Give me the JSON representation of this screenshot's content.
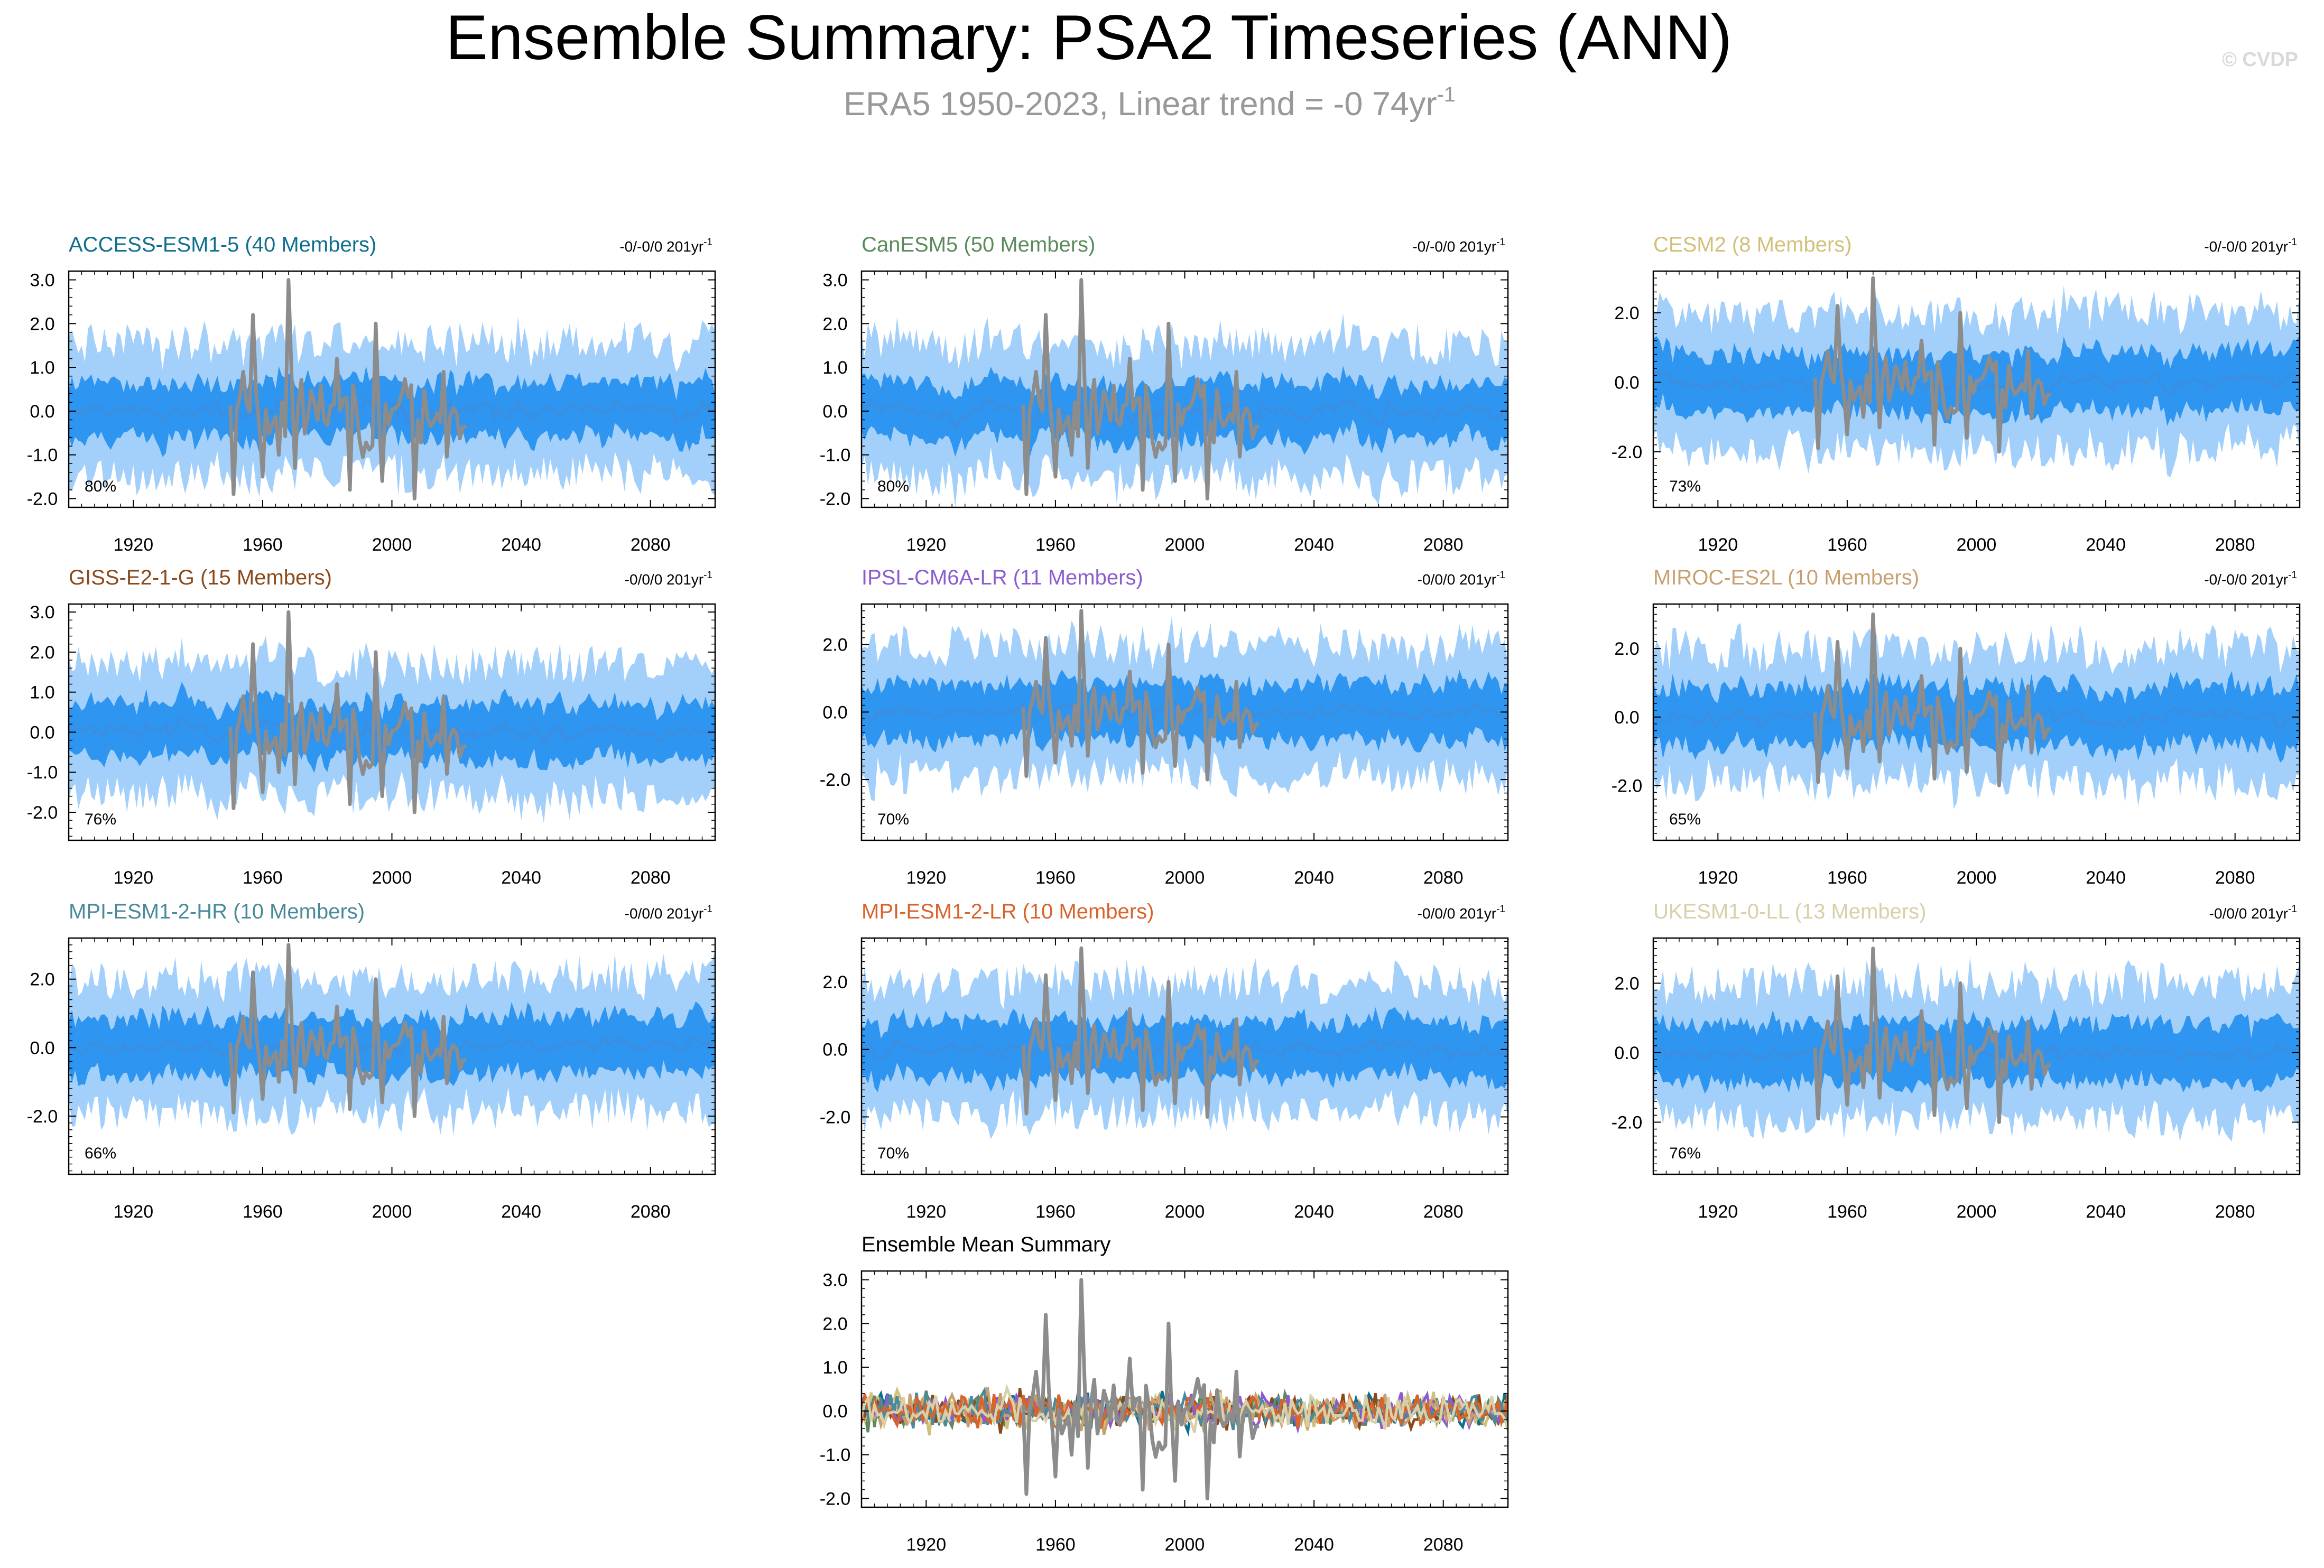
{
  "figure": {
    "title": "Ensemble Summary: PSA2 Timeseries (ANN)",
    "subtitle_prefix": "ERA5 1950-2023, Linear trend = -0 74yr",
    "subtitle_exp": "-1",
    "watermark": "© CVDP",
    "colors": {
      "title": "#000000",
      "subtitle": "#999999",
      "watermark": "#d9d9d9",
      "outer_band": "#a3d0fa",
      "inner_band": "#2e95f0",
      "ensemble_mean_line": "#3b8ee0",
      "observations": "#8c8c8c"
    }
  },
  "chart_data": [
    {
      "type": "line",
      "name": "ACCESS-ESM1-5 (40 Members)",
      "color": "#0f6f8f",
      "trend_text": "-0/-0/0 201yr",
      "trend_exp": "-1",
      "percent": "80%",
      "ylim": [
        -2.2,
        3.2
      ],
      "yticks": [
        -2,
        -1,
        0,
        1,
        2,
        3
      ],
      "ytick_labels": [
        "-2.0",
        "-1.0",
        "0.0",
        "1.0",
        "2.0",
        "3.0"
      ],
      "xlim": [
        1900,
        2100
      ],
      "xticks": [
        1920,
        1960,
        2000,
        2040,
        2080
      ],
      "band_outer": 1.5,
      "band_inner": 0.65,
      "seed": 11
    },
    {
      "type": "line",
      "name": "CanESM5 (50 Members)",
      "color": "#5b8a5b",
      "trend_text": "-0/-0/0 201yr",
      "trend_exp": "-1",
      "percent": "80%",
      "ylim": [
        -2.2,
        3.2
      ],
      "yticks": [
        -2,
        -1,
        0,
        1,
        2,
        3
      ],
      "ytick_labels": [
        "-2.0",
        "-1.0",
        "0.0",
        "1.0",
        "2.0",
        "3.0"
      ],
      "xlim": [
        1900,
        2100
      ],
      "xticks": [
        1920,
        1960,
        2000,
        2040,
        2080
      ],
      "band_outer": 1.5,
      "band_inner": 0.65,
      "seed": 23
    },
    {
      "type": "line",
      "name": "CESM2 (8 Members)",
      "color": "#d2c07a",
      "trend_text": "-0/-0/0 201yr",
      "trend_exp": "-1",
      "percent": "73%",
      "ylim": [
        -3.6,
        3.2
      ],
      "yticks": [
        -2,
        0,
        2
      ],
      "ytick_labels": [
        "-2.0",
        "0.0",
        "2.0"
      ],
      "xlim": [
        1900,
        2100
      ],
      "xticks": [
        1920,
        1960,
        2000,
        2040,
        2080
      ],
      "band_outer": 1.9,
      "band_inner": 0.85,
      "seed": 37
    },
    {
      "type": "line",
      "name": "GISS-E2-1-G (15 Members)",
      "color": "#8b4a1c",
      "trend_text": "-0/0/0 201yr",
      "trend_exp": "-1",
      "percent": "76%",
      "ylim": [
        -2.7,
        3.2
      ],
      "yticks": [
        -2,
        -1,
        0,
        1,
        2,
        3
      ],
      "ytick_labels": [
        "-2.0",
        "-1.0",
        "0.0",
        "1.0",
        "2.0",
        "3.0"
      ],
      "xlim": [
        1900,
        2100
      ],
      "xticks": [
        1920,
        1960,
        2000,
        2040,
        2080
      ],
      "band_outer": 1.6,
      "band_inner": 0.7,
      "seed": 41
    },
    {
      "type": "line",
      "name": "IPSL-CM6A-LR (11 Members)",
      "color": "#8a5cd0",
      "trend_text": "-0/0/0 201yr",
      "trend_exp": "-1",
      "percent": "70%",
      "ylim": [
        -3.8,
        3.2
      ],
      "yticks": [
        -2,
        0,
        2
      ],
      "ytick_labels": [
        "-2.0",
        "0.0",
        "2.0"
      ],
      "xlim": [
        1900,
        2100
      ],
      "xticks": [
        1920,
        1960,
        2000,
        2040,
        2080
      ],
      "band_outer": 1.9,
      "band_inner": 0.85,
      "seed": 53
    },
    {
      "type": "line",
      "name": "MIROC-ES2L (10 Members)",
      "color": "#c8a070",
      "trend_text": "-0/-0/0 201yr",
      "trend_exp": "-1",
      "percent": "65%",
      "ylim": [
        -3.6,
        3.3
      ],
      "yticks": [
        -2,
        0,
        2
      ],
      "ytick_labels": [
        "-2.0",
        "0.0",
        "2.0"
      ],
      "xlim": [
        1900,
        2100
      ],
      "xticks": [
        1920,
        1960,
        2000,
        2040,
        2080
      ],
      "band_outer": 1.9,
      "band_inner": 0.9,
      "seed": 67
    },
    {
      "type": "line",
      "name": "MPI-ESM1-2-HR (10 Members)",
      "color": "#4a8a9a",
      "trend_text": "-0/0/0 201yr",
      "trend_exp": "-1",
      "percent": "66%",
      "ylim": [
        -3.7,
        3.2
      ],
      "yticks": [
        -2,
        0,
        2
      ],
      "ytick_labels": [
        "-2.0",
        "0.0",
        "2.0"
      ],
      "xlim": [
        1900,
        2100
      ],
      "xticks": [
        1920,
        1960,
        2000,
        2040,
        2080
      ],
      "band_outer": 1.9,
      "band_inner": 0.85,
      "seed": 79
    },
    {
      "type": "line",
      "name": "MPI-ESM1-2-LR (10 Members)",
      "color": "#d9632a",
      "trend_text": "-0/0/0 201yr",
      "trend_exp": "-1",
      "percent": "70%",
      "ylim": [
        -3.7,
        3.3
      ],
      "yticks": [
        -2,
        0,
        2
      ],
      "ytick_labels": [
        "-2.0",
        "0.0",
        "2.0"
      ],
      "xlim": [
        1900,
        2100
      ],
      "xticks": [
        1920,
        1960,
        2000,
        2040,
        2080
      ],
      "band_outer": 1.9,
      "band_inner": 0.85,
      "seed": 83
    },
    {
      "type": "line",
      "name": "UKESM1-0-LL (13 Members)",
      "color": "#d8d0a8",
      "trend_text": "-0/0/0 201yr",
      "trend_exp": "-1",
      "percent": "76%",
      "ylim": [
        -3.5,
        3.3
      ],
      "yticks": [
        -2,
        0,
        2
      ],
      "ytick_labels": [
        "-2.0",
        "0.0",
        "2.0"
      ],
      "xlim": [
        1900,
        2100
      ],
      "xticks": [
        1920,
        1960,
        2000,
        2040,
        2080
      ],
      "band_outer": 1.9,
      "band_inner": 0.85,
      "seed": 97
    },
    {
      "type": "line",
      "name": "Ensemble Mean Summary",
      "color": "#000000",
      "ylim": [
        -2.2,
        3.2
      ],
      "yticks": [
        -2,
        -1,
        0,
        1,
        2,
        3
      ],
      "ytick_labels": [
        "-2.0",
        "-1.0",
        "0.0",
        "1.0",
        "2.0",
        "3.0"
      ],
      "xlim": [
        1900,
        2100
      ],
      "xticks": [
        1920,
        1960,
        2000,
        2040,
        2080
      ],
      "series_colors": [
        "#0f6f8f",
        "#5b8a5b",
        "#d2c07a",
        "#8b4a1c",
        "#8a5cd0",
        "#c8a070",
        "#4a8a9a",
        "#d9632a",
        "#d8d0a8"
      ],
      "mean_amp": 0.35,
      "seed": 5
    }
  ],
  "observations": {
    "name": "ERA5",
    "x_start": 1950,
    "x_end": 2023,
    "key_points": [
      {
        "x": 1951,
        "y": -1.9
      },
      {
        "x": 1954,
        "y": 0.9
      },
      {
        "x": 1957,
        "y": 2.2
      },
      {
        "x": 1960,
        "y": -1.5
      },
      {
        "x": 1965,
        "y": -1.0
      },
      {
        "x": 1968,
        "y": 3.0
      },
      {
        "x": 1970,
        "y": -1.3
      },
      {
        "x": 1983,
        "y": 1.2
      },
      {
        "x": 1987,
        "y": -1.8
      },
      {
        "x": 1995,
        "y": 2.0
      },
      {
        "x": 1997,
        "y": -1.6
      },
      {
        "x": 2007,
        "y": -2.0
      },
      {
        "x": 2016,
        "y": 0.9
      }
    ],
    "noise_amp": 0.8,
    "seed": 3
  }
}
